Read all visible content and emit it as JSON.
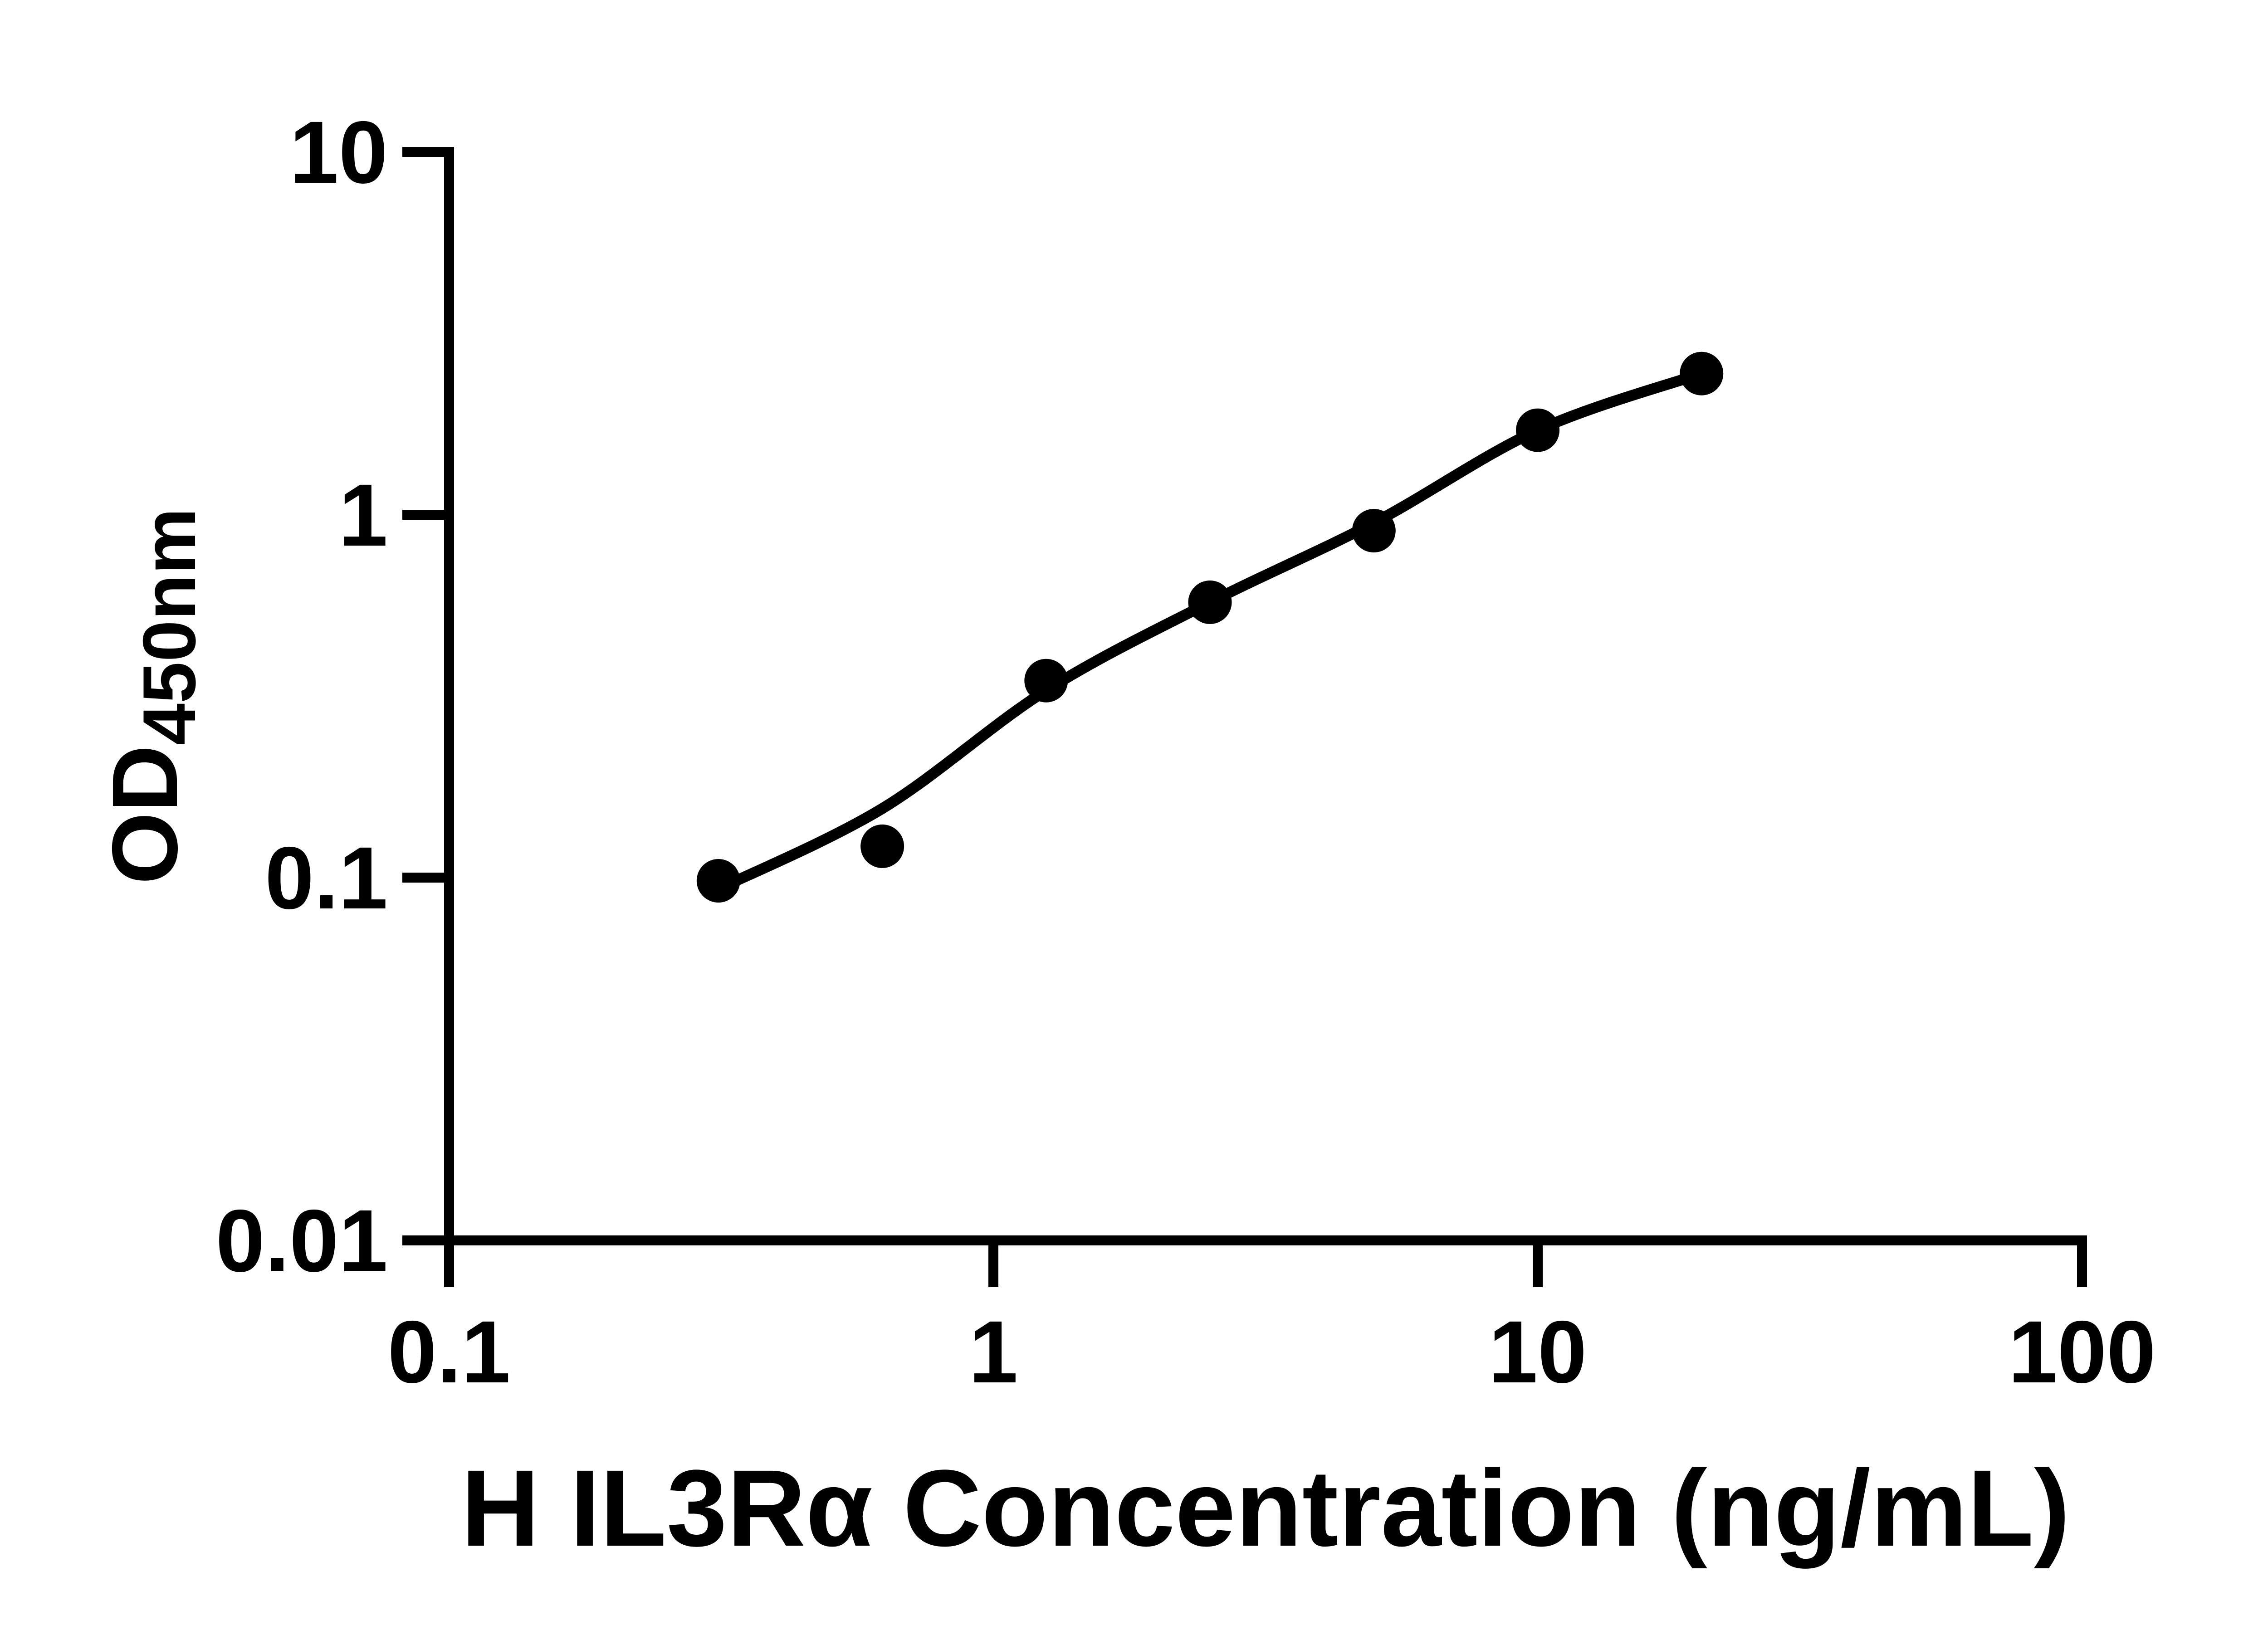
{
  "chart_data": {
    "type": "scatter",
    "title": "",
    "xlabel": "H IL3Rα Concentration (ng/mL)",
    "ylabel_main": "OD",
    "ylabel_sub": "450nm",
    "x_scale": "log",
    "y_scale": "log",
    "xlim": [
      0.1,
      100
    ],
    "ylim": [
      0.01,
      10
    ],
    "grid": "off",
    "legend": "none",
    "x_ticks": [
      {
        "value": 0.1,
        "label": "0.1"
      },
      {
        "value": 1,
        "label": "1"
      },
      {
        "value": 10,
        "label": "10"
      },
      {
        "value": 100,
        "label": "100"
      }
    ],
    "y_ticks": [
      {
        "value": 0.01,
        "label": "0.01"
      },
      {
        "value": 0.1,
        "label": "0.1"
      },
      {
        "value": 1,
        "label": "1"
      },
      {
        "value": 10,
        "label": "10"
      }
    ],
    "points": [
      {
        "x": 0.3125,
        "y": 0.098
      },
      {
        "x": 0.625,
        "y": 0.122
      },
      {
        "x": 1.25,
        "y": 0.349
      },
      {
        "x": 2.5,
        "y": 0.574
      },
      {
        "x": 5,
        "y": 0.904
      },
      {
        "x": 10,
        "y": 1.71
      },
      {
        "x": 20,
        "y": 2.45
      }
    ],
    "fit_curve": [
      {
        "x": 0.3125,
        "y": 0.093
      },
      {
        "x": 0.625,
        "y": 0.155
      },
      {
        "x": 1.25,
        "y": 0.328
      },
      {
        "x": 2.5,
        "y": 0.574
      },
      {
        "x": 5,
        "y": 0.95
      },
      {
        "x": 10,
        "y": 1.71
      },
      {
        "x": 20,
        "y": 2.45
      }
    ],
    "marker_color": "#000000",
    "line_color": "#000000",
    "axis_color": "#000000",
    "background": "#ffffff"
  }
}
